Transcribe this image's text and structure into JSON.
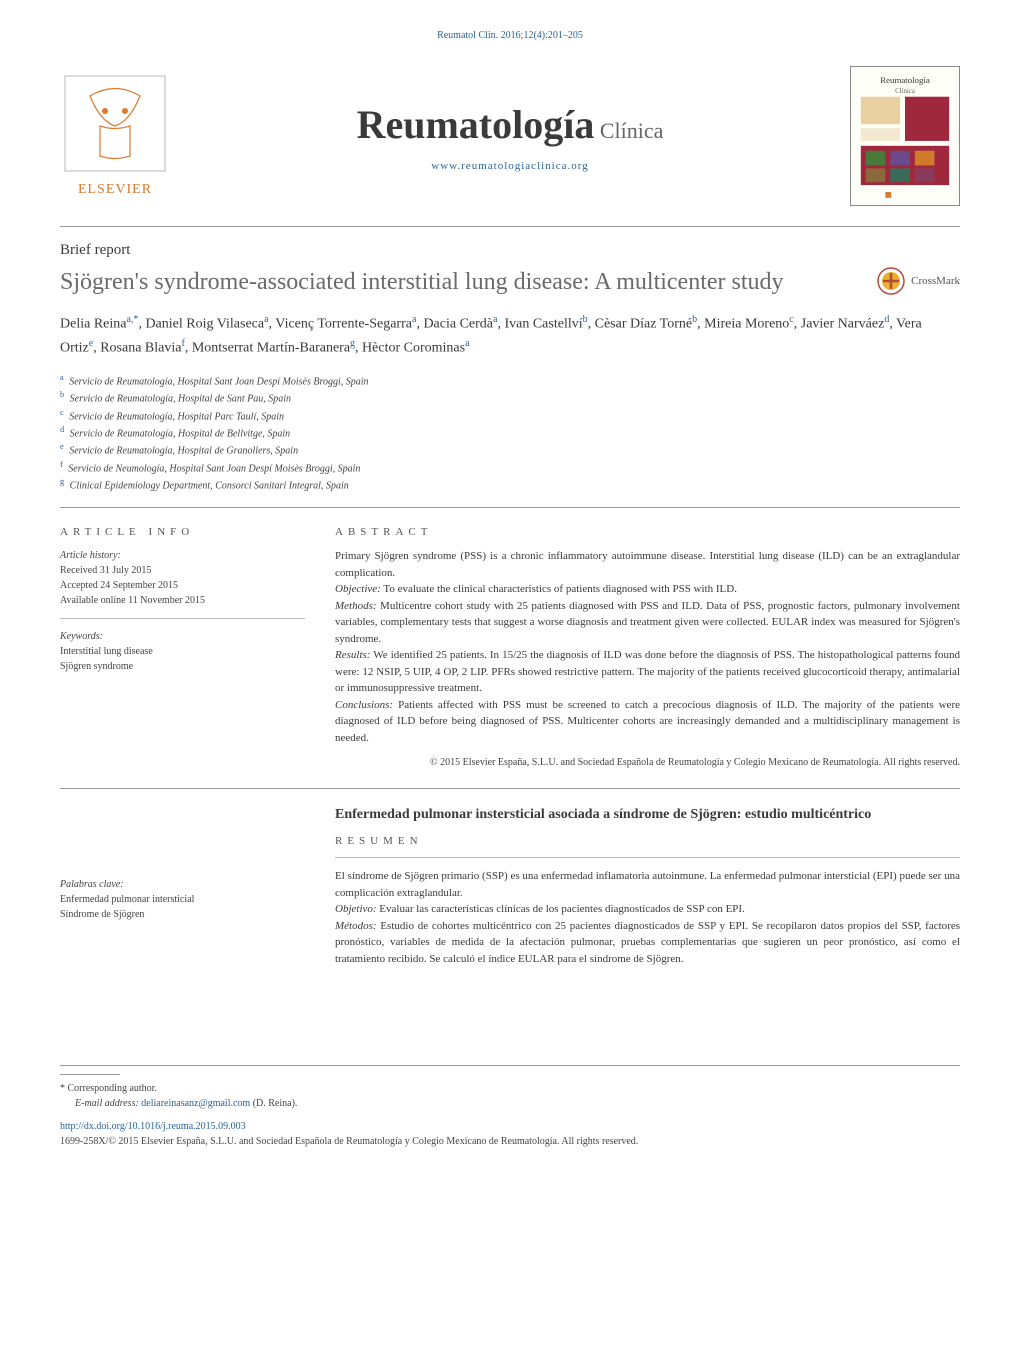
{
  "top_link": "Reumatol Clin. 2016;12(4):201–205",
  "journal": {
    "title_bold": "Reumatología",
    "title_light": " Clínica",
    "url": "www.reumatologiaclinica.org",
    "cover_label": "Reumatología Clínica"
  },
  "article_type": "Brief report",
  "title": "Sjögren's syndrome-associated interstitial lung disease: A multicenter study",
  "crossmark_label": "CrossMark",
  "authors_html": "Delia Reina<sup>a,*</sup>, Daniel Roig Vilaseca<sup>a</sup>, Vicenç Torrente-Segarra<sup>a</sup>, Dacia Cerdà<sup>a</sup>, Ivan Castellví<sup>b</sup>, Cèsar Díaz Torné<sup>b</sup>, Mireia Moreno<sup>c</sup>, Javier Narváez<sup>d</sup>, Vera Ortiz<sup>e</sup>, Rosana Blavia<sup>f</sup>, Montserrat Martín-Baranera<sup>g</sup>, Hèctor Corominas<sup>a</sup>",
  "affiliations": [
    {
      "sup": "a",
      "text": "Servicio de Reumatología, Hospital Sant Joan Despí Moisès Broggi, Spain"
    },
    {
      "sup": "b",
      "text": "Servicio de Reumatología, Hospital de Sant Pau, Spain"
    },
    {
      "sup": "c",
      "text": "Servicio de Reumatología, Hospital Parc Taulí, Spain"
    },
    {
      "sup": "d",
      "text": "Servicio de Reumatología, Hospital de Bellvitge, Spain"
    },
    {
      "sup": "e",
      "text": "Servicio de Reumatología, Hospital de Granollers, Spain"
    },
    {
      "sup": "f",
      "text": "Servicio de Neumología, Hospital Sant Joan Despí Moisès Broggi, Spain"
    },
    {
      "sup": "g",
      "text": "Clinical Epidemiology Department, Consorci Sanitari Integral, Spain"
    }
  ],
  "article_info": {
    "heading": "ARTICLE INFO",
    "history_label": "Article history:",
    "received": "Received 31 July 2015",
    "accepted": "Accepted 24 September 2015",
    "online": "Available online 11 November 2015"
  },
  "keywords": {
    "label": "Keywords:",
    "items": [
      "Interstitial lung disease",
      "Sjögren syndrome"
    ]
  },
  "abstract": {
    "heading": "ABSTRACT",
    "intro": "Primary Sjögren syndrome (PSS) is a chronic inflammatory autoimmune disease. Interstitial lung disease (ILD) can be an extraglandular complication.",
    "objective_label": "Objective:",
    "objective": " To evaluate the clinical characteristics of patients diagnosed with PSS with ILD.",
    "methods_label": "Methods:",
    "methods": " Multicentre cohort study with 25 patients diagnosed with PSS and ILD. Data of PSS, prognostic factors, pulmonary involvement variables, complementary tests that suggest a worse diagnosis and treatment given were collected. EULAR index was measured for Sjögren's syndrome.",
    "results_label": "Results:",
    "results": " We identified 25 patients. In 15/25 the diagnosis of ILD was done before the diagnosis of PSS. The histopathological patterns found were: 12 NSIP, 5 UIP, 4 OP, 2 LIP. PFRs showed restrictive pattern. The majority of the patients received glucocorticoid therapy, antimalarial or immunosuppressive treatment.",
    "conclusions_label": "Conclusions:",
    "conclusions": " Patients affected with PSS must be screened to catch a precocious diagnosis of ILD. The majority of the patients were diagnosed of ILD before being diagnosed of PSS. Multicenter cohorts are increasingly demanded and a multidisciplinary management is needed.",
    "copyright": "© 2015 Elsevier España, S.L.U. and Sociedad Española de Reumatología y Colegio Mexicano de Reumatología. All rights reserved."
  },
  "spanish": {
    "title": "Enfermedad pulmonar instersticial asociada a síndrome de Sjögren: estudio multicéntrico",
    "resumen_heading": "RESUMEN",
    "palabras_label": "Palabras clave:",
    "palabras": [
      "Enfermedad pulmonar intersticial",
      "Síndrome de Sjögren"
    ],
    "intro": "El síndrome de Sjögren primario (SSP) es una enfermedad inflamatoria autoinmune. La enfermedad pulmonar intersticial (EPI) puede ser una complicación extraglandular.",
    "objetivo_label": "Objetivo:",
    "objetivo": " Evaluar las características clínicas de los pacientes diagnosticados de SSP con EPI.",
    "metodos_label": "Métodos:",
    "metodos": " Estudio de cohortes multicéntrico con 25 pacientes diagnosticados de SSP y EPI. Se recopilaron datos propios del SSP, factores pronóstico, variables de medida de la afectación pulmonar, pruebas complementarias que sugieren un peor pronóstico, así como el tratamiento recibido. Se calculó el índice EULAR para el síndrome de Sjögren."
  },
  "footer": {
    "corresponding": "* Corresponding author.",
    "email_label": "E-mail address:",
    "email": "deliareinasanz@gmail.com",
    "email_suffix": " (D. Reina).",
    "doi": "http://dx.doi.org/10.1016/j.reuma.2015.09.003",
    "issn": "1699-258X/© 2015 Elsevier España, S.L.U. and Sociedad Española de Reumatología y Colegio Mexicano de Reumatología. All rights reserved."
  },
  "colors": {
    "link": "#2a6496",
    "text": "#3a3a3a",
    "muted": "#666666",
    "border": "#999999"
  }
}
